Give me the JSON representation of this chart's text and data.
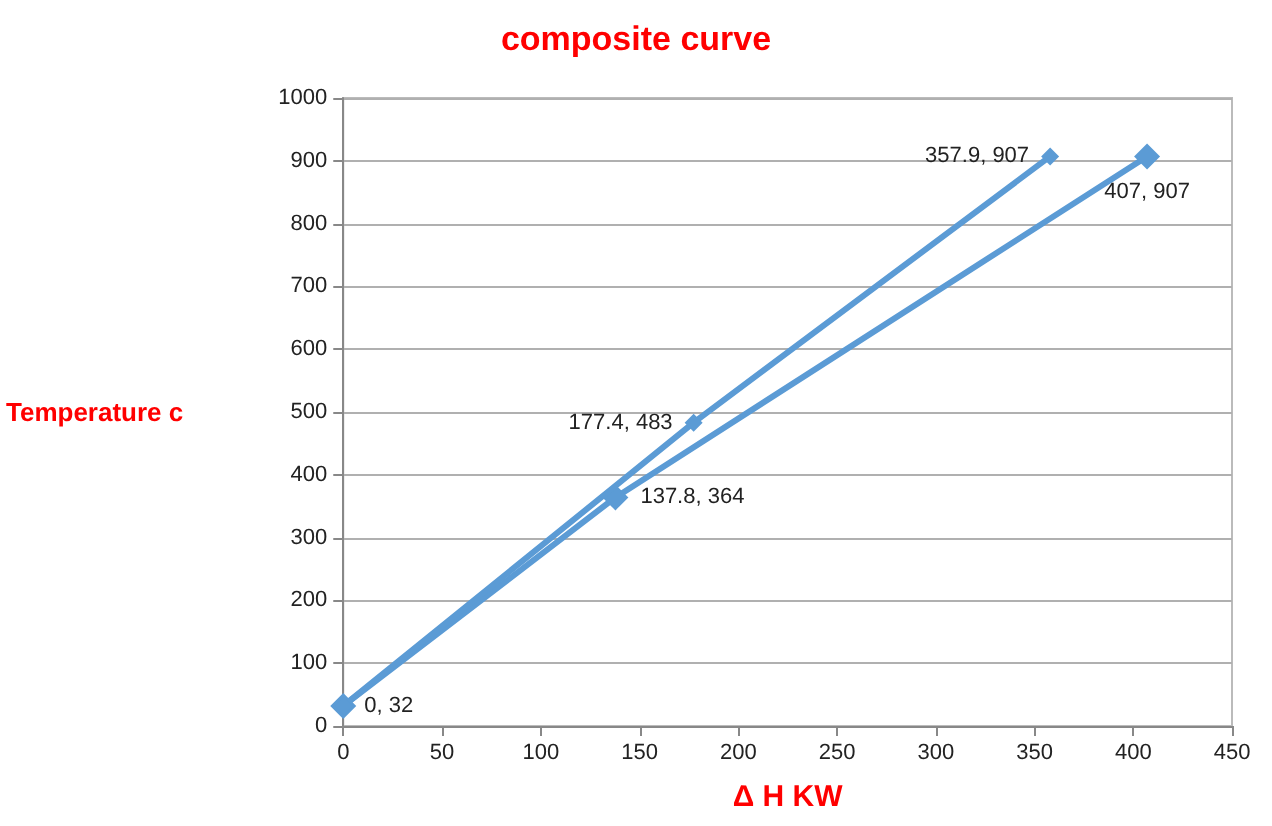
{
  "chart_data": {
    "type": "line",
    "title": "composite curve",
    "xlabel": "Δ H KW",
    "ylabel": "Temperature c",
    "xlim": [
      0,
      450
    ],
    "xticks": [
      0,
      50,
      100,
      150,
      200,
      250,
      300,
      350,
      400,
      450
    ],
    "ylim": [
      0,
      1000
    ],
    "yticks": [
      0,
      100,
      200,
      300,
      400,
      500,
      600,
      700,
      800,
      900,
      1000
    ],
    "grid": "y",
    "marker": "diamond",
    "series": [
      {
        "color": "#5b9bd5",
        "x": [
          0,
          177.4,
          357.9
        ],
        "values": [
          32,
          483,
          907
        ],
        "value_labels": [
          "0, 32",
          "177.4, 483",
          "357.9, 907"
        ]
      },
      {
        "color": "#5b9bd5",
        "x": [
          0,
          137.8,
          407
        ],
        "values": [
          32,
          364,
          907
        ],
        "value_labels": [
          null,
          "137.8, 364",
          "407, 907"
        ]
      }
    ]
  }
}
